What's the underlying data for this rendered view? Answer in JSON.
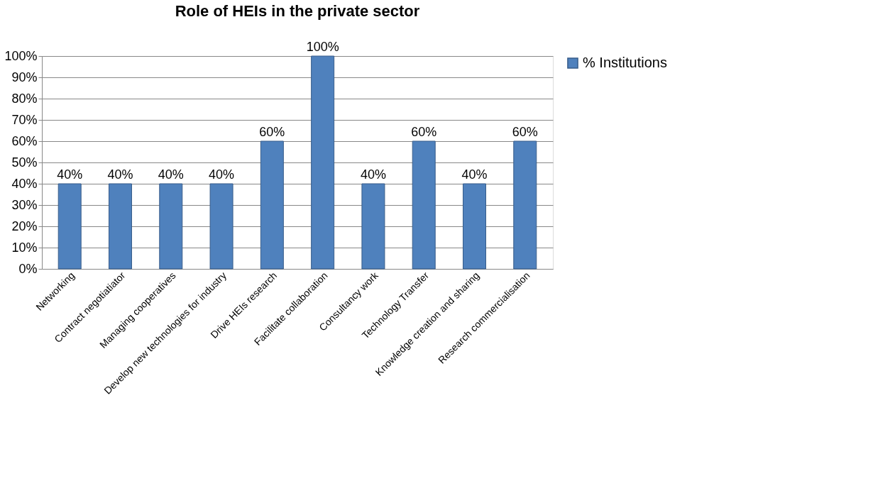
{
  "chart_data": {
    "type": "bar",
    "title": "Role of HEIs in the private sector",
    "categories": [
      "Networking",
      "Contract negotiatiator",
      "Managing cooperatives",
      "Develop new technologies for industry",
      "Drive HEIs research",
      "Facilitate collaboration",
      "Consultancy work",
      "Technology Transfer",
      "Knowledge creation and sharing",
      "Research commercialisation"
    ],
    "series": [
      {
        "name": "% Institutions",
        "color": "#4f81bd",
        "values": [
          40,
          40,
          40,
          40,
          60,
          100,
          40,
          60,
          40,
          60
        ],
        "value_labels": [
          "40%",
          "40%",
          "40%",
          "40%",
          "60%",
          "100%",
          "40%",
          "60%",
          "40%",
          "60%"
        ]
      }
    ],
    "ylim": [
      0,
      100
    ],
    "yticks": [
      {
        "value": 0,
        "label": "0%"
      },
      {
        "value": 10,
        "label": "10%"
      },
      {
        "value": 20,
        "label": "20%"
      },
      {
        "value": 30,
        "label": "30%"
      },
      {
        "value": 40,
        "label": "40%"
      },
      {
        "value": 50,
        "label": "50%"
      },
      {
        "value": 60,
        "label": "60%"
      },
      {
        "value": 70,
        "label": "70%"
      },
      {
        "value": 80,
        "label": "80%"
      },
      {
        "value": 90,
        "label": "90%"
      },
      {
        "value": 100,
        "label": "100%"
      }
    ],
    "grid": "y",
    "legend": "right"
  }
}
